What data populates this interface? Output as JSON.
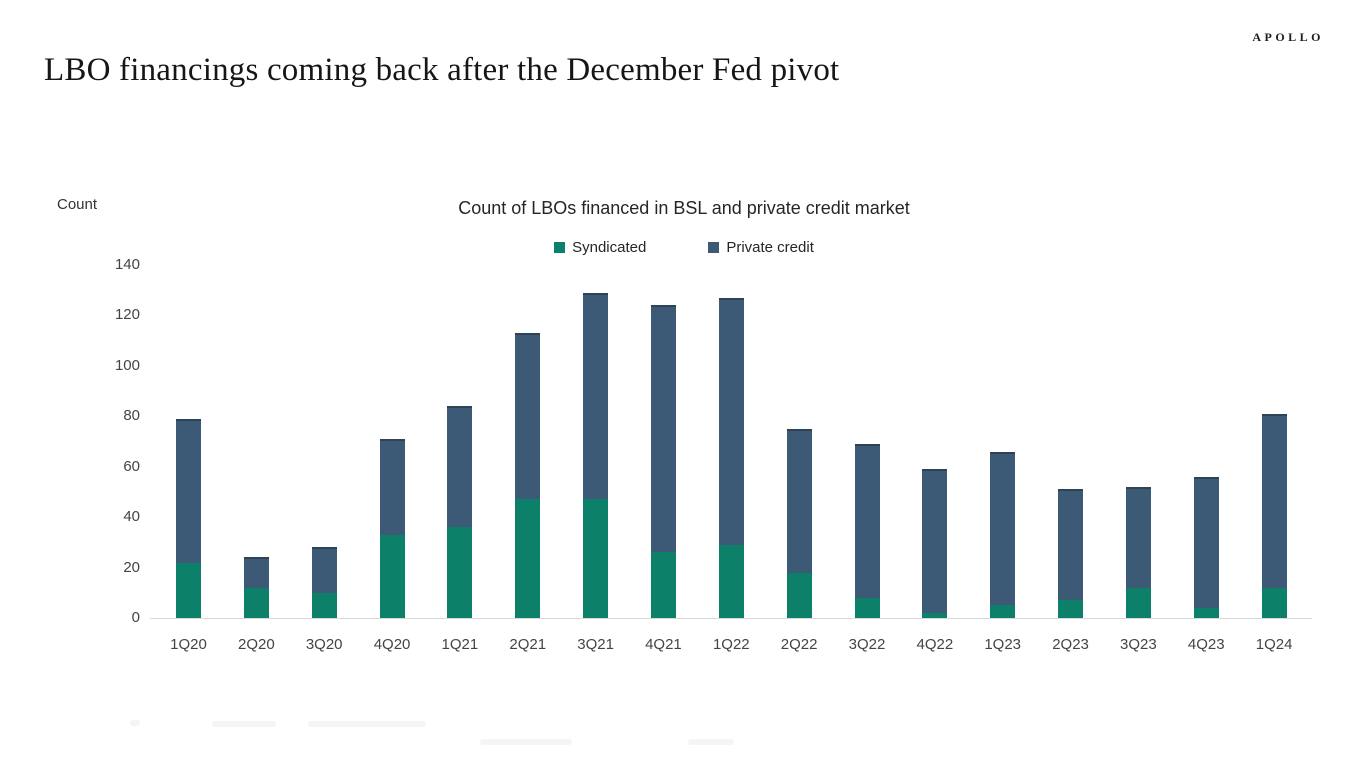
{
  "page": {
    "logo_text": "APOLLO",
    "title": "LBO financings coming back after the December Fed pivot"
  },
  "chart_data": {
    "type": "bar",
    "stacked": true,
    "title": "Count of LBOs financed in BSL and private credit market",
    "ylabel": "Count",
    "xlabel": "",
    "categories": [
      "1Q20",
      "2Q20",
      "3Q20",
      "4Q20",
      "1Q21",
      "2Q21",
      "3Q21",
      "4Q21",
      "1Q22",
      "2Q22",
      "3Q22",
      "4Q22",
      "1Q23",
      "2Q23",
      "3Q23",
      "4Q23",
      "1Q24"
    ],
    "series": [
      {
        "name": "Syndicated",
        "color": "#0d8069",
        "values": [
          22,
          12,
          10,
          33,
          36,
          47,
          47,
          26,
          29,
          18,
          8,
          2,
          5,
          7,
          12,
          4,
          12
        ]
      },
      {
        "name": "Private credit",
        "color": "#3c5a76",
        "values": [
          57,
          12,
          18,
          38,
          48,
          66,
          82,
          98,
          98,
          57,
          61,
          57,
          61,
          44,
          40,
          52,
          69
        ]
      }
    ],
    "totals": [
      79,
      24,
      28,
      71,
      84,
      113,
      129,
      124,
      127,
      75,
      69,
      59,
      66,
      51,
      52,
      56,
      81
    ],
    "ylim": [
      0,
      140
    ],
    "yticks": [
      0,
      20,
      40,
      60,
      80,
      100,
      120,
      140
    ],
    "grid": false,
    "legend_position": "top-center",
    "background": "#ffffff",
    "axis_color": "#d9d9d9",
    "tick_label_color": "#444444"
  }
}
